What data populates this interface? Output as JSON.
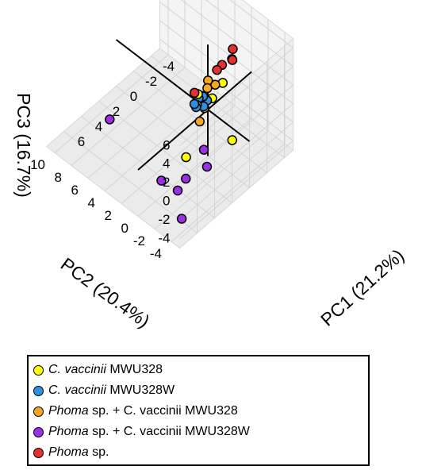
{
  "chart_data": {
    "type": "scatter",
    "projection": "3d",
    "title": "",
    "axes": {
      "x": {
        "label": "PC1 (21.2%)",
        "range": [
          -5,
          8
        ],
        "ticks": [
          "-4",
          "-2",
          "0",
          "2",
          "4",
          "6"
        ]
      },
      "y": {
        "label": "PC2 (20.4%)",
        "range": [
          -5,
          11
        ],
        "ticks": [
          "-4",
          "-2",
          "0",
          "2",
          "4",
          "6",
          "8",
          "10"
        ]
      },
      "z": {
        "label": "PC3 (16.7%)",
        "range": [
          -5,
          7
        ],
        "ticks": [
          "-4",
          "-2",
          "0",
          "2",
          "4",
          "6"
        ]
      }
    },
    "grid": true,
    "legend_position": "bottom-left",
    "series": [
      {
        "name_italic": "C. vaccinii",
        "name_rest": " MWU328",
        "color": "#ffff00",
        "points": [
          {
            "x": 1.5,
            "y": -4.5,
            "z": 1.0
          },
          {
            "x": -0.5,
            "y": 0.0,
            "z": 0.8
          },
          {
            "x": -0.3,
            "y": 1.5,
            "z": 0.4
          },
          {
            "x": 0.2,
            "y": -2.0,
            "z": 4.4
          },
          {
            "x": 2.3,
            "y": 0.2,
            "z": -3.4
          }
        ]
      },
      {
        "name_italic": "C. vaccinii",
        "name_rest": " MWU328W",
        "color": "#2f8fe0",
        "points": [
          {
            "x": -0.2,
            "y": 0.3,
            "z": 0.6
          },
          {
            "x": 0.2,
            "y": 0.3,
            "z": 0.3
          },
          {
            "x": -0.1,
            "y": 1.2,
            "z": 0.3
          },
          {
            "x": 0.4,
            "y": 1.2,
            "z": 0.1
          },
          {
            "x": 0.2,
            "y": 1.2,
            "z": -0.4
          },
          {
            "x": -0.6,
            "y": 1.2,
            "z": 0.1
          }
        ]
      },
      {
        "name_italic": "Phoma",
        "name_rest": " sp. + C. vaccinii MWU328",
        "color": "#f5a623",
        "points": [
          {
            "x": 3.7,
            "y": -3.9,
            "z": 8.8
          },
          {
            "x": 4.2,
            "y": -4.0,
            "z": 6.3
          },
          {
            "x": 2.3,
            "y": -3.3,
            "z": 6.8
          },
          {
            "x": 4.1,
            "y": -3.5,
            "z": 7.2
          },
          {
            "x": 1.2,
            "y": -1.2,
            "z": 4.1
          },
          {
            "x": 2.1,
            "y": -0.9,
            "z": 2.8
          },
          {
            "x": 3.7,
            "y": -2.9,
            "z": 3.7
          }
        ]
      },
      {
        "name_italic": "Phoma",
        "name_rest": " sp. + C. vaccinii MWU328W",
        "color": "#9b30e6",
        "points": [
          {
            "x": 3.7,
            "y": -3.4,
            "z": 1.0
          },
          {
            "x": 4.2,
            "y": -4.3,
            "z": 0.2
          },
          {
            "x": 6.6,
            "y": -3.3,
            "z": -1.1
          },
          {
            "x": 5.0,
            "y": -2.6,
            "z": -1.6
          },
          {
            "x": 7.0,
            "y": -4.2,
            "z": -3.2
          },
          {
            "x": 5.8,
            "y": -0.5,
            "z": -2.6
          },
          {
            "x": 5.9,
            "y": 5.6,
            "z": -0.1
          }
        ]
      },
      {
        "name_italic": "Phoma",
        "name_rest": " sp.",
        "color": "#e53030",
        "points": [
          {
            "x": -4.1,
            "y": 1.3,
            "z": 2.3
          },
          {
            "x": -4.2,
            "y": 1.5,
            "z": 1.0
          },
          {
            "x": -5.2,
            "y": 2.5,
            "z": -0.6
          },
          {
            "x": -4.3,
            "y": 2.8,
            "z": -0.6
          },
          {
            "x": -4.2,
            "y": 3.3,
            "z": -1.4
          },
          {
            "x": -2.1,
            "y": 3.8,
            "z": -2.5
          }
        ]
      }
    ]
  }
}
